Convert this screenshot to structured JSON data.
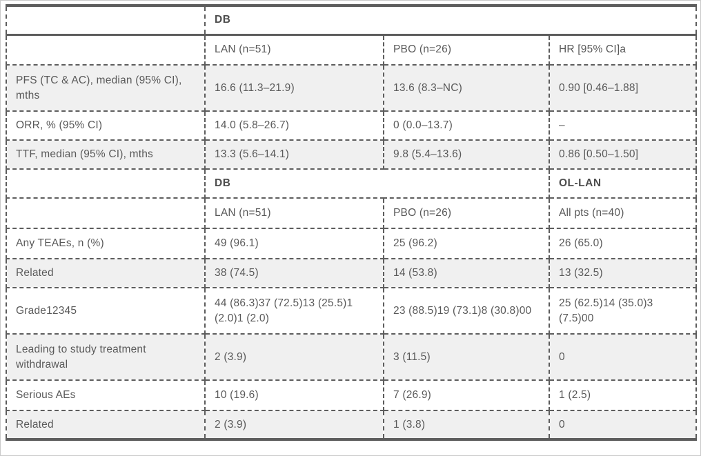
{
  "colors": {
    "border": "#5d5d5d",
    "text": "#595959",
    "header_text": "#4d4d4d",
    "shaded_row": "#f0f0f0",
    "white_row": "#ffffff"
  },
  "efficacy": {
    "group_header": "DB",
    "columns": [
      "",
      "LAN (n=51)",
      "PBO (n=26)",
      "HR [95% CI]a"
    ],
    "rows": [
      {
        "label": "PFS (TC & AC), median (95% CI), mths",
        "values": [
          "16.6 (11.3–21.9)",
          "13.6 (8.3–NC)",
          "0.90 [0.46–1.88]"
        ]
      },
      {
        "label": "ORR, % (95% CI)",
        "values": [
          "14.0 (5.8–26.7)",
          "0 (0.0–13.7)",
          "–"
        ]
      },
      {
        "label": "TTF, median (95% CI), mths",
        "values": [
          "13.3 (5.6–14.1)",
          "9.8 (5.4–13.6)",
          "0.86 [0.50–1.50]"
        ]
      }
    ]
  },
  "safety": {
    "group_header_db": "DB",
    "group_header_ol": "OL-LAN",
    "columns": [
      "",
      "LAN (n=51)",
      "PBO (n=26)",
      "All pts (n=40)"
    ],
    "rows": [
      {
        "label": "Any TEAEs, n (%)",
        "values": [
          "49 (96.1)",
          "25 (96.2)",
          "26 (65.0)"
        ]
      },
      {
        "label": "Related",
        "values": [
          "38 (74.5)",
          "14 (53.8)",
          "13 (32.5)"
        ]
      },
      {
        "label": "Grade12345",
        "values": [
          "44 (86.3)37 (72.5)13 (25.5)1 (2.0)1 (2.0)",
          "23 (88.5)19 (73.1)8 (30.8)00",
          "25 (62.5)14 (35.0)3 (7.5)00"
        ]
      },
      {
        "label": "Leading to study treatment withdrawal",
        "values": [
          "2 (3.9)",
          "3 (11.5)",
          "0"
        ]
      },
      {
        "label": "Serious AEs",
        "values": [
          "10 (19.6)",
          "7 (26.9)",
          "1 (2.5)"
        ]
      },
      {
        "label": "Related",
        "values": [
          "2 (3.9)",
          "1 (3.8)",
          "0"
        ]
      }
    ]
  }
}
